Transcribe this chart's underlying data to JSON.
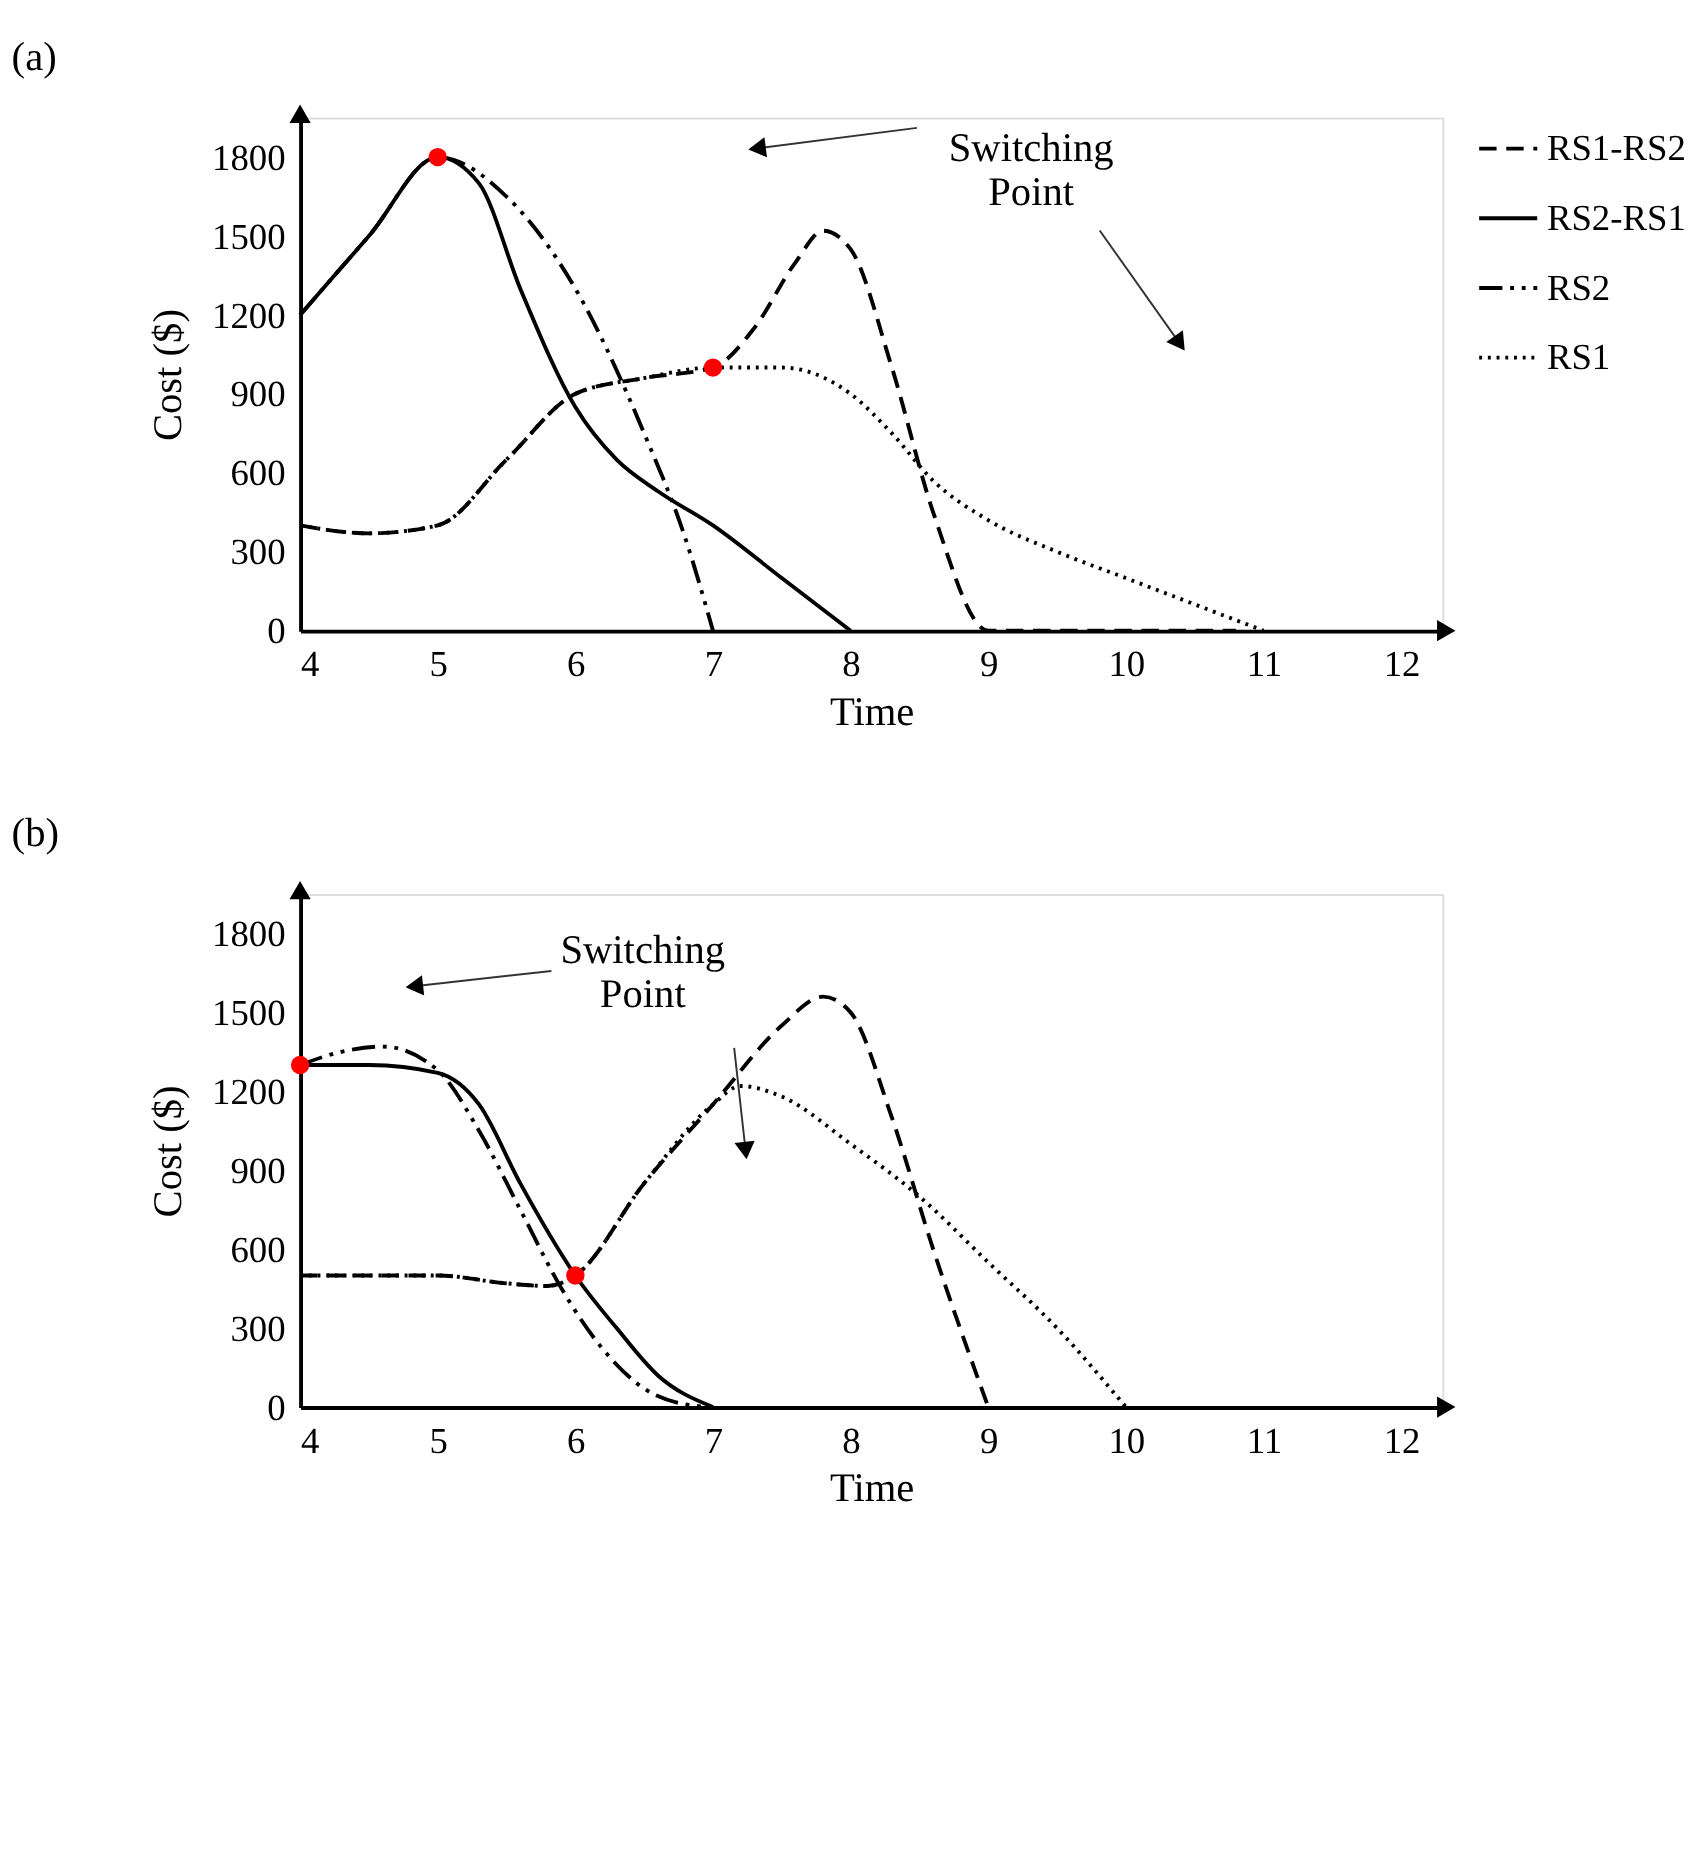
{
  "chart_data": [
    {
      "type": "line",
      "title": "(a)",
      "xlabel": "Time",
      "ylabel": "Cost ($)",
      "xlim": [
        4,
        12.3
      ],
      "ylim": [
        0,
        1950
      ],
      "xticks": [
        4,
        5,
        6,
        7,
        8,
        9,
        10,
        11,
        12
      ],
      "yticks": [
        0,
        300,
        600,
        900,
        1200,
        1500,
        1800
      ],
      "grid": false,
      "legend": "top right",
      "annotations": [
        "Switching Point"
      ],
      "series": [
        {
          "name": "RS1-RS2",
          "color": "#000000",
          "line_style": "dashed",
          "x": [
            4,
            4.5,
            5,
            5.5,
            6,
            6.5,
            7,
            7.3,
            7.6,
            7.8,
            8,
            8.3,
            8.6,
            9,
            10,
            10.8
          ],
          "values": [
            400,
            370,
            400,
            650,
            900,
            960,
            1000,
            1150,
            1400,
            1520,
            1450,
            1000,
            450,
            0,
            0,
            0
          ]
        },
        {
          "name": "RS2-RS1",
          "color": "#000000",
          "line_style": "solid",
          "x": [
            4,
            4.5,
            5,
            5.3,
            5.6,
            6,
            6.3,
            6.6,
            7,
            7.5,
            8
          ],
          "values": [
            1200,
            1500,
            1800,
            1700,
            1300,
            850,
            650,
            530,
            400,
            200,
            0
          ]
        },
        {
          "name": "RS2",
          "color": "#000000",
          "line_style": "dashdot",
          "x": [
            4,
            4.5,
            5,
            5.5,
            6,
            6.5,
            6.8,
            7
          ],
          "values": [
            1200,
            1500,
            1800,
            1650,
            1300,
            750,
            350,
            0
          ]
        },
        {
          "name": "RS1",
          "color": "#000000",
          "line_style": "dotted",
          "x": [
            4,
            4.5,
            5,
            5.5,
            6,
            6.5,
            7,
            7.5,
            8,
            8.3,
            8.6,
            9,
            9.5,
            10,
            10.5,
            11
          ],
          "values": [
            400,
            370,
            400,
            650,
            900,
            960,
            1000,
            1000,
            900,
            750,
            570,
            420,
            300,
            200,
            100,
            0
          ]
        },
        {
          "type": "scatter",
          "color": "#ff0000",
          "marker": "circle",
          "x": [
            5,
            7
          ],
          "values": [
            1800,
            1000
          ]
        }
      ]
    },
    {
      "type": "line",
      "title": "(b)",
      "xlabel": "Time",
      "ylabel": "Cost ($)",
      "xlim": [
        4,
        12.3
      ],
      "ylim": [
        0,
        1950
      ],
      "xticks": [
        4,
        5,
        6,
        7,
        8,
        9,
        10,
        11,
        12
      ],
      "yticks": [
        0,
        300,
        600,
        900,
        1200,
        1500,
        1800
      ],
      "grid": false,
      "annotations": [
        "Switching Point"
      ],
      "series": [
        {
          "color": "#000000",
          "line_style": "dashed",
          "x": [
            4,
            5,
            5.5,
            5.8,
            6,
            6.5,
            7,
            7.5,
            7.8,
            8,
            8.3,
            8.6,
            9
          ],
          "values": [
            500,
            500,
            470,
            460,
            500,
            850,
            1150,
            1450,
            1560,
            1500,
            1100,
            600,
            0
          ]
        },
        {
          "color": "#000000",
          "line_style": "solid",
          "x": [
            4,
            4.5,
            5,
            5.3,
            5.6,
            6,
            6.3,
            6.6,
            7
          ],
          "values": [
            1300,
            1300,
            1270,
            1150,
            850,
            500,
            300,
            120,
            0
          ]
        },
        {
          "color": "#000000",
          "line_style": "dashdot",
          "x": [
            4,
            4.3,
            4.6,
            5,
            5.3,
            5.6,
            5.9,
            6.2,
            6.5,
            6.8,
            7
          ],
          "values": [
            1300,
            1350,
            1370,
            1280,
            1050,
            750,
            450,
            220,
            70,
            10,
            0
          ]
        },
        {
          "color": "#000000",
          "line_style": "dotted",
          "x": [
            4,
            5,
            5.5,
            5.8,
            6,
            6.5,
            7,
            7.2,
            7.5,
            8,
            8.5,
            9,
            9.5,
            10
          ],
          "values": [
            500,
            500,
            470,
            460,
            500,
            850,
            1150,
            1220,
            1180,
            1000,
            800,
            550,
            300,
            0
          ]
        },
        {
          "type": "scatter",
          "color": "#ff0000",
          "marker": "circle",
          "x": [
            4,
            6
          ],
          "values": [
            1300,
            500
          ]
        }
      ]
    }
  ]
}
